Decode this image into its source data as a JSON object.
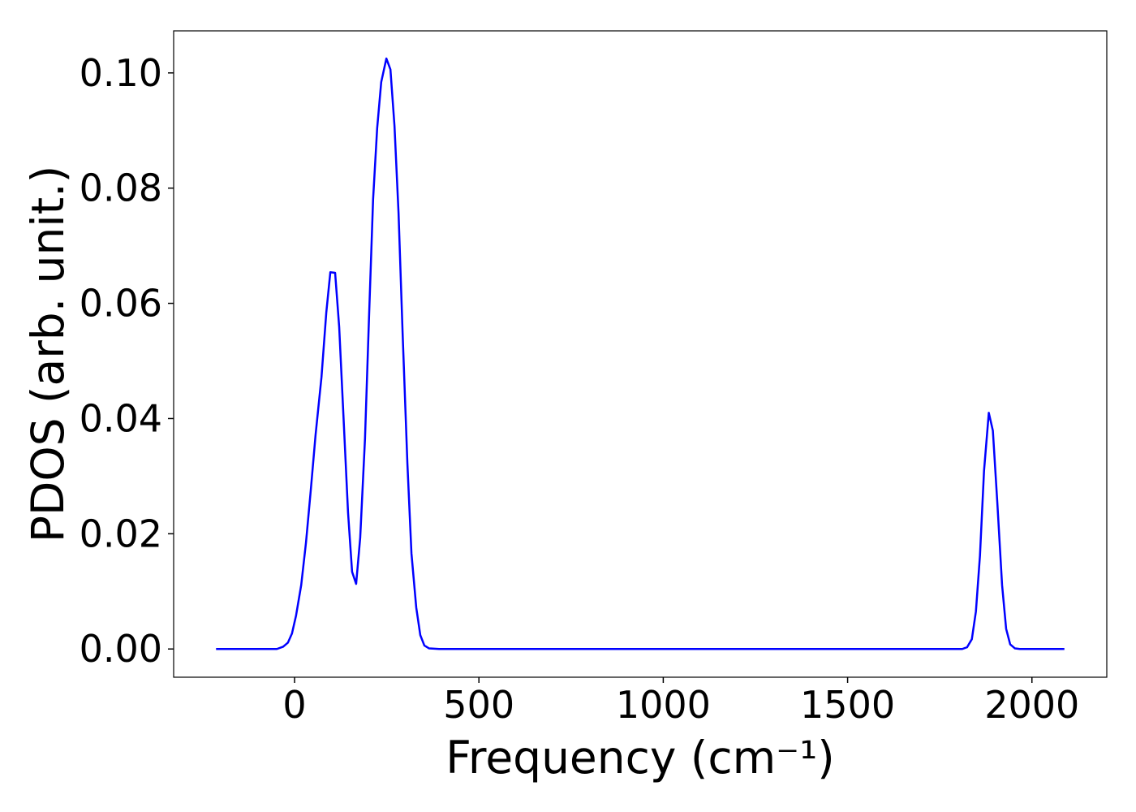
{
  "chart_data": {
    "type": "line",
    "xlabel": "Frequency (cm⁻¹)",
    "ylabel": "PDOS (arb. unit.)",
    "color": "#0000ff",
    "x": [
      -213,
      -48,
      -31,
      -18,
      -7,
      4,
      18,
      31,
      44,
      57,
      73,
      86,
      97,
      110,
      121,
      132,
      145,
      156,
      167,
      178,
      191,
      202,
      213,
      224,
      235,
      249,
      260,
      271,
      282,
      293,
      306,
      317,
      330,
      341,
      352,
      365,
      392,
      1811,
      1824,
      1837,
      1848,
      1859,
      1870,
      1883,
      1894,
      1906,
      1919,
      1930,
      1941,
      1954,
      1967,
      2088
    ],
    "values": [
      0,
      0,
      0.0004,
      0.0011,
      0.0027,
      0.0058,
      0.0111,
      0.0185,
      0.0276,
      0.0372,
      0.0472,
      0.0584,
      0.0654,
      0.0653,
      0.0559,
      0.0412,
      0.0237,
      0.0134,
      0.0113,
      0.0193,
      0.0365,
      0.0577,
      0.0781,
      0.0904,
      0.0984,
      0.1025,
      0.1006,
      0.0908,
      0.0757,
      0.0549,
      0.0322,
      0.0166,
      0.0072,
      0.0024,
      0.0006,
      0.0001,
      0,
      0,
      0.0003,
      0.0017,
      0.0065,
      0.0162,
      0.0309,
      0.041,
      0.0379,
      0.0255,
      0.0111,
      0.0035,
      0.0008,
      0.0001,
      0,
      0
    ],
    "xlim": [
      -328,
      2203
    ],
    "ylim": [
      -0.0049,
      0.1073
    ],
    "xticks": [
      0,
      500,
      1000,
      1500,
      2000
    ],
    "yticks": [
      {
        "value": 0,
        "label": "0.00"
      },
      {
        "value": 0.02,
        "label": "0.02"
      },
      {
        "value": 0.04,
        "label": "0.04"
      },
      {
        "value": 0.06,
        "label": "0.06"
      },
      {
        "value": 0.08,
        "label": "0.08"
      },
      {
        "value": 0.1,
        "label": "0.10"
      }
    ],
    "grid": false
  }
}
